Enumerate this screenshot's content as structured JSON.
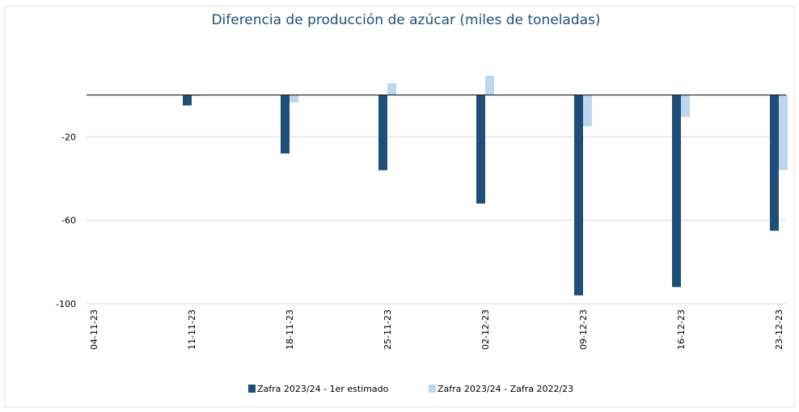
{
  "chart_data": {
    "type": "bar",
    "title": "Diferencia de producción de azúcar (miles de toneladas)",
    "categories": [
      "04-11-23",
      "11-11-23",
      "18-11-23",
      "25-11-23",
      "02-12-23",
      "09-12-23",
      "16-12-23",
      "23-12-23"
    ],
    "series": [
      {
        "name": "Zafra 2023/24 - 1er estimado",
        "color": "#1f4e79",
        "values": [
          0,
          -5,
          -28,
          -36,
          -52,
          -96,
          -92,
          -65
        ]
      },
      {
        "name": "Zafra 2023/24 - Zafra 2022/23",
        "color": "#bdd7ee",
        "values": [
          0,
          -0.5,
          -3.5,
          5.8,
          9.3,
          -15,
          -10.5,
          -36
        ]
      }
    ],
    "ylim": [
      -100,
      20
    ],
    "yticks": [
      -20,
      -60,
      -100
    ],
    "grid": true
  }
}
